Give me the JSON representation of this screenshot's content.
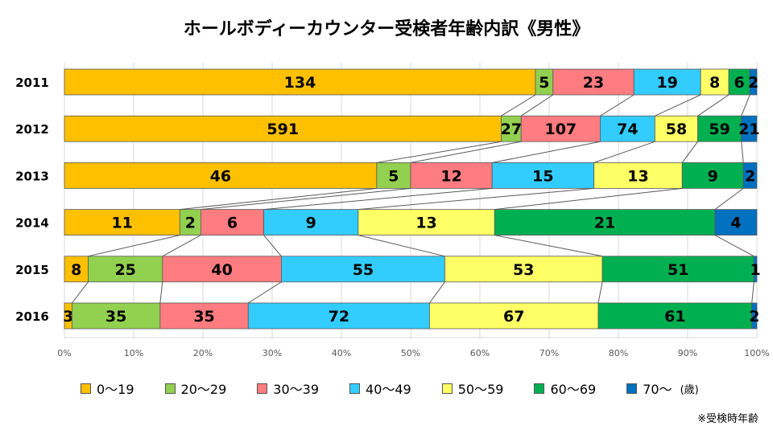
{
  "chart_data": {
    "type": "bar",
    "orientation": "horizontal",
    "stacked": "percent",
    "title": "ホールボディーカウンター受検者年齢内訳《男性》",
    "categories": [
      "2011",
      "2012",
      "2013",
      "2014",
      "2015",
      "2016"
    ],
    "series": [
      {
        "name": "0～19",
        "color": "#FFC000",
        "values": [
          134,
          591,
          46,
          11,
          8,
          3
        ]
      },
      {
        "name": "20～29",
        "color": "#92D050",
        "values": [
          5,
          27,
          5,
          2,
          25,
          35
        ]
      },
      {
        "name": "30～39",
        "color": "#FF7C80",
        "values": [
          23,
          107,
          12,
          6,
          40,
          35
        ]
      },
      {
        "name": "40～49",
        "color": "#33CCFF",
        "values": [
          19,
          74,
          15,
          9,
          55,
          72
        ]
      },
      {
        "name": "50～59",
        "color": "#FFFF66",
        "values": [
          8,
          58,
          13,
          13,
          53,
          67
        ]
      },
      {
        "name": "60～69",
        "color": "#00B050",
        "values": [
          6,
          59,
          9,
          21,
          51,
          61
        ]
      },
      {
        "name": "70～",
        "color": "#0070C0",
        "values": [
          2,
          21,
          2,
          4,
          1,
          2
        ]
      }
    ],
    "x_ticks": [
      "0%",
      "10%",
      "20%",
      "30%",
      "40%",
      "50%",
      "60%",
      "70%",
      "80%",
      "90%",
      "100%"
    ],
    "xlim": [
      0,
      1
    ],
    "legend_position": "bottom",
    "legend_unit": "(歳)",
    "series_lines": true
  },
  "note": "※受検時年齢"
}
